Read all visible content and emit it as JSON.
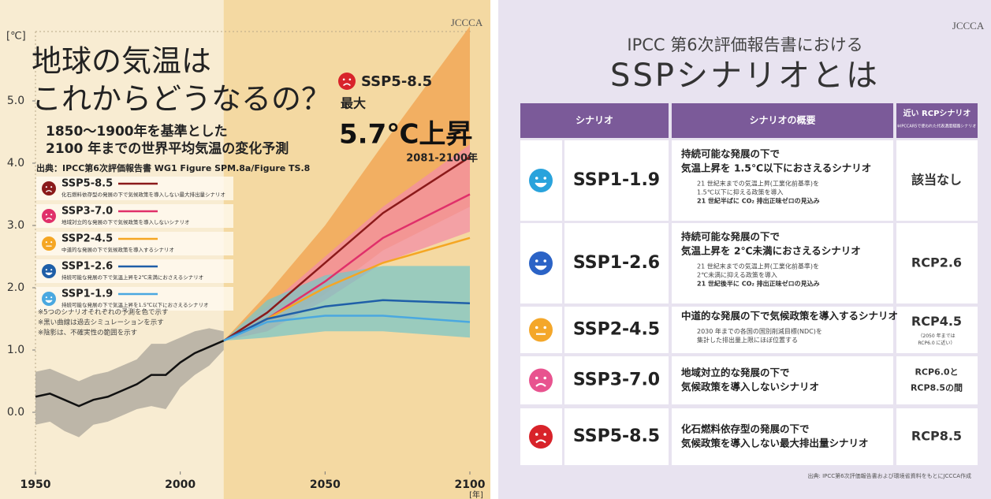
{
  "chart_data": {
    "type": "line",
    "title": [
      "地球の気温は",
      "これからどうなるの？"
    ],
    "subtitle": [
      "1850～1900年を基準とした",
      "2100 年までの世界平均気温の変化予測"
    ],
    "source": "出典：IPCC第6次評価報告書 WG1 Figure SPM.8a/Figure TS.8",
    "ylabel": "[℃]",
    "xlabel": "[年]",
    "logo": "JCCCA",
    "xlim": [
      1950,
      2100
    ],
    "ylim": [
      -1,
      6.5
    ],
    "xticks": [
      1950,
      2000,
      2050,
      2100
    ],
    "yticks": [
      {
        "value": 0,
        "label": "0.0"
      },
      {
        "value": 1,
        "label": "1.0"
      },
      {
        "value": 2,
        "label": "2.0"
      },
      {
        "value": 3,
        "label": "3.0"
      },
      {
        "value": 4,
        "label": "4.0"
      },
      {
        "value": 5,
        "label": "5.0"
      }
    ],
    "grid": false,
    "series": [
      {
        "color": "#111111",
        "band_color": "#a9a49a",
        "x": [
          1950,
          1955,
          1960,
          1965,
          1970,
          1975,
          1980,
          1985,
          1990,
          1995,
          2000,
          2005,
          2010,
          2015
        ],
        "values": [
          0.25,
          0.3,
          0.2,
          0.1,
          0.2,
          0.25,
          0.35,
          0.45,
          0.6,
          0.6,
          0.8,
          0.95,
          1.05,
          1.15
        ],
        "low": [
          -0.2,
          -0.15,
          -0.3,
          -0.4,
          -0.2,
          -0.15,
          -0.05,
          0.05,
          0.1,
          0.05,
          0.4,
          0.6,
          0.75,
          1.0
        ],
        "high": [
          0.65,
          0.7,
          0.6,
          0.5,
          0.6,
          0.65,
          0.75,
          0.85,
          1.1,
          1.1,
          1.2,
          1.3,
          1.35,
          1.3
        ]
      },
      {
        "name": "SSP5-8.5",
        "description": "化石燃料依存型の発展の下で気候政策を導入しない最大排出量シナリオ",
        "color": "#8b1a1a",
        "band_color": "#f2a04c",
        "x": [
          2015,
          2030,
          2050,
          2070,
          2100
        ],
        "values": [
          1.15,
          1.6,
          2.4,
          3.2,
          4.1
        ],
        "low": [
          1.15,
          1.3,
          1.9,
          2.6,
          3.3
        ],
        "high": [
          1.15,
          1.9,
          3.0,
          4.3,
          6.2
        ]
      },
      {
        "name": "SSP3-7.0",
        "description": "地域対立的な発展の下で気候政策を導入しないシナリオ",
        "color": "#e0306a",
        "band_color": "#f38ea5",
        "x": [
          2015,
          2030,
          2050,
          2070,
          2100
        ],
        "values": [
          1.15,
          1.5,
          2.1,
          2.8,
          3.5
        ],
        "low": [
          1.15,
          1.3,
          1.8,
          2.4,
          2.9
        ],
        "high": [
          1.15,
          1.7,
          2.5,
          3.3,
          4.3
        ]
      },
      {
        "name": "SSP2-4.5",
        "description": "中道的な発展の下で気候政策を導入するシナリオ",
        "color": "#f5a623",
        "x": [
          2015,
          2030,
          2050,
          2070,
          2100
        ],
        "values": [
          1.15,
          1.5,
          2.0,
          2.4,
          2.8
        ]
      },
      {
        "name": "SSP1-2.6",
        "description": "持続可能な発展の下で気温上昇を2℃未満におさえるシナリオ",
        "color": "#1f5fa8",
        "band_color": "#7cc6c6",
        "x": [
          2015,
          2030,
          2050,
          2070,
          2100
        ],
        "values": [
          1.15,
          1.5,
          1.7,
          1.8,
          1.75
        ],
        "low": [
          1.15,
          1.2,
          1.3,
          1.3,
          1.2
        ],
        "high": [
          1.15,
          1.8,
          2.2,
          2.35,
          2.35
        ]
      },
      {
        "name": "SSP1-1.9",
        "description": "持続可能な発展の下で気温上昇を1.5℃以下におさえるシナリオ",
        "color": "#4aa8e0",
        "x": [
          2015,
          2030,
          2050,
          2070,
          2100
        ],
        "values": [
          1.15,
          1.45,
          1.55,
          1.55,
          1.45
        ]
      }
    ],
    "annotation": {
      "scenario": "SSP5-8.5",
      "label": "最大",
      "value": "5.7℃上昇",
      "period": "2081-2100年"
    },
    "notes": [
      "※5つのシナリオそれぞれの予測を色で示す",
      "※黒い曲線は過去シミュレーションを示す",
      "※陰影は、不確実性の範囲を示す"
    ]
  },
  "table": {
    "logo": "JCCCA",
    "title": [
      "IPCC 第6次評価報告書における",
      "SSPシナリオとは"
    ],
    "headers": [
      "シナリオ",
      "シナリオの概要",
      "近い RCPシナリオ"
    ],
    "header_note": "※IPCCAR5で使われた代表濃度経路シナリオ",
    "rows": [
      {
        "scenario": "SSP1-1.9",
        "icon_color": "#29a3dc",
        "summary": [
          "持続可能な発展の下で",
          "気温上昇を 1.5℃以下におさえるシナリオ"
        ],
        "details": [
          "21 世紀末までの気温上昇(工業化前基準)を",
          "1.5℃以下に抑える政策を導入"
        ],
        "outlook": "21 世紀半ばに CO₂ 排出正味ゼロの見込み",
        "rcp": [
          "該当なし"
        ]
      },
      {
        "scenario": "SSP1-2.6",
        "icon_color": "#2b63c6",
        "summary": [
          "持続可能な発展の下で",
          "気温上昇を 2℃未満におさえるシナリオ"
        ],
        "details": [
          "21 世紀末までの気温上昇(工業化前基準)を",
          "2℃未満に抑える政策を導入"
        ],
        "outlook": "21 世紀後半に CO₂ 排出正味ゼロの見込み",
        "rcp": [
          "RCP2.6"
        ]
      },
      {
        "scenario": "SSP2-4.5",
        "icon_color": "#f4a72a",
        "summary": [
          "中道的な発展の下で気候政策を導入するシナリオ"
        ],
        "details": [
          "2030 年までの各国の国別削減目標(NDC)を",
          "集計した排出量上限にほぼ位置する"
        ],
        "rcp": [
          "RCP4.5"
        ],
        "rcp_note": [
          "（2050 年までは",
          "RCP6.0 に近い）"
        ]
      },
      {
        "scenario": "SSP3-7.0",
        "icon_color": "#e8538f",
        "summary": [
          "地域対立的な発展の下で",
          "気候政策を導入しないシナリオ"
        ],
        "rcp": [
          "RCP6.0と",
          "RCP8.5の間"
        ]
      },
      {
        "scenario": "SSP5-8.5",
        "icon_color": "#d8232a",
        "summary": [
          "化石燃料依存型の発展の下で",
          "気候政策を導入しない最大排出量シナリオ"
        ],
        "rcp": [
          "RCP8.5"
        ]
      }
    ],
    "footer": "出典: IPCC第6次評価報告書および環境省資料をもとにJCCCA作成"
  }
}
